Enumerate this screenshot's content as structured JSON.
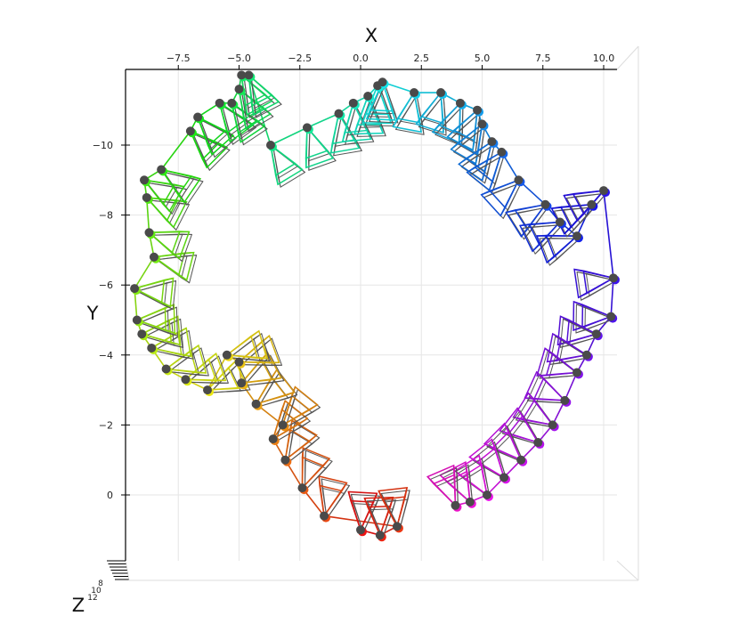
{
  "chart_data": {
    "type": "scatter",
    "title": "",
    "xlabel": "X",
    "ylabel": "Y",
    "zlabel": "Z",
    "x_ticks": [
      "−7.5",
      "−5.0",
      "−2.5",
      "0.0",
      "2.5",
      "5.0",
      "7.5",
      "10.0"
    ],
    "x_tick_values": [
      -7.5,
      -5.0,
      -2.5,
      0.0,
      2.5,
      5.0,
      7.5,
      10.0
    ],
    "y_ticks": [
      "−10",
      "−8",
      "−6",
      "−4",
      "−2",
      "0"
    ],
    "y_tick_values": [
      -10,
      -8,
      -6,
      -4,
      -2,
      0
    ],
    "z_ticks": [
      "12",
      "10",
      "8"
    ],
    "xlim": [
      -9.6,
      10.4
    ],
    "ylim": [
      -12.0,
      2.0
    ],
    "y_inverted": true,
    "grid": true,
    "colormap": "hsv-reversed",
    "marker_color": "#4a4a4a",
    "frame_color": "#555555",
    "series": [
      {
        "values": [
          {
            "x": 0.0,
            "y": 1.0
          },
          {
            "x": 0.8,
            "y": 1.15
          },
          {
            "x": 1.5,
            "y": 0.9
          },
          {
            "x": -1.5,
            "y": 0.6
          },
          {
            "x": -2.4,
            "y": -0.2
          },
          {
            "x": -3.1,
            "y": -1.0
          },
          {
            "x": -3.6,
            "y": -1.6
          },
          {
            "x": -3.2,
            "y": -2.0
          },
          {
            "x": -4.3,
            "y": -2.6
          },
          {
            "x": -4.9,
            "y": -3.2
          },
          {
            "x": -5.0,
            "y": -3.8
          },
          {
            "x": -5.5,
            "y": -4.0
          },
          {
            "x": -6.3,
            "y": -3.0
          },
          {
            "x": -7.2,
            "y": -3.3
          },
          {
            "x": -8.0,
            "y": -3.6
          },
          {
            "x": -8.6,
            "y": -4.2
          },
          {
            "x": -9.0,
            "y": -4.6
          },
          {
            "x": -9.2,
            "y": -5.0
          },
          {
            "x": -9.3,
            "y": -5.9
          },
          {
            "x": -8.5,
            "y": -6.8
          },
          {
            "x": -8.7,
            "y": -7.5
          },
          {
            "x": -8.8,
            "y": -8.5
          },
          {
            "x": -8.9,
            "y": -9.0
          },
          {
            "x": -8.2,
            "y": -9.3
          },
          {
            "x": -7.0,
            "y": -10.4
          },
          {
            "x": -6.7,
            "y": -10.8
          },
          {
            "x": -5.8,
            "y": -11.2
          },
          {
            "x": -5.3,
            "y": -11.2
          },
          {
            "x": -5.0,
            "y": -11.6
          },
          {
            "x": -4.9,
            "y": -12.0
          },
          {
            "x": -4.6,
            "y": -12.0
          },
          {
            "x": -3.7,
            "y": -10.0
          },
          {
            "x": -2.2,
            "y": -10.5
          },
          {
            "x": -0.9,
            "y": -10.9
          },
          {
            "x": -0.3,
            "y": -11.2
          },
          {
            "x": 0.3,
            "y": -11.4
          },
          {
            "x": 0.7,
            "y": -11.7
          },
          {
            "x": 0.9,
            "y": -11.8
          },
          {
            "x": 2.2,
            "y": -11.5
          },
          {
            "x": 3.3,
            "y": -11.5
          },
          {
            "x": 4.1,
            "y": -11.2
          },
          {
            "x": 4.8,
            "y": -11.0
          },
          {
            "x": 5.0,
            "y": -10.6
          },
          {
            "x": 5.4,
            "y": -10.1
          },
          {
            "x": 5.8,
            "y": -9.8
          },
          {
            "x": 6.5,
            "y": -9.0
          },
          {
            "x": 7.6,
            "y": -8.3
          },
          {
            "x": 8.2,
            "y": -7.8
          },
          {
            "x": 8.9,
            "y": -7.4
          },
          {
            "x": 9.5,
            "y": -8.3
          },
          {
            "x": 10.0,
            "y": -8.7
          },
          {
            "x": 10.4,
            "y": -6.2
          },
          {
            "x": 10.3,
            "y": -5.1
          },
          {
            "x": 9.7,
            "y": -4.6
          },
          {
            "x": 9.3,
            "y": -4.0
          },
          {
            "x": 8.9,
            "y": -3.5
          },
          {
            "x": 8.4,
            "y": -2.7
          },
          {
            "x": 7.9,
            "y": -2.0
          },
          {
            "x": 7.3,
            "y": -1.5
          },
          {
            "x": 6.6,
            "y": -1.0
          },
          {
            "x": 5.9,
            "y": -0.5
          },
          {
            "x": 5.2,
            "y": 0.0
          },
          {
            "x": 4.5,
            "y": 0.2
          },
          {
            "x": 3.9,
            "y": 0.3
          }
        ]
      }
    ]
  }
}
